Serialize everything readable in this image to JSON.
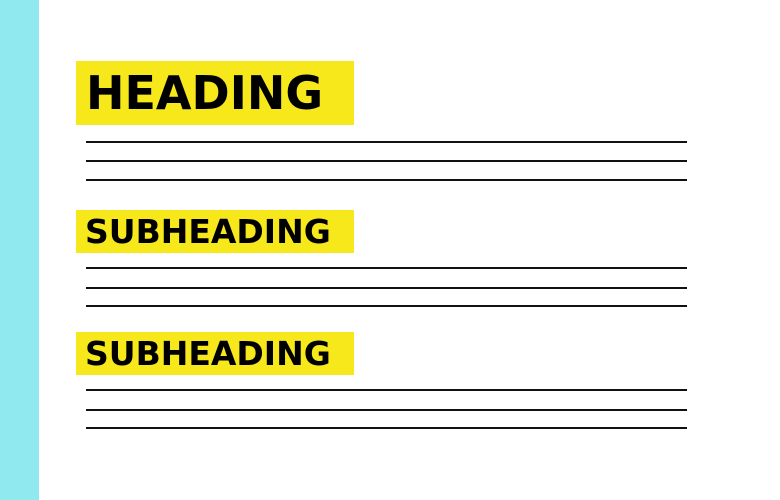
{
  "colors": {
    "sidebar": "#8fe9ee",
    "highlight": "#f7e81c",
    "text": "#000000",
    "rule": "#111111"
  },
  "heading": {
    "text": "HEADING"
  },
  "sections": [
    {
      "subheading": "SUBHEADING"
    },
    {
      "subheading": "SUBHEADING"
    }
  ]
}
